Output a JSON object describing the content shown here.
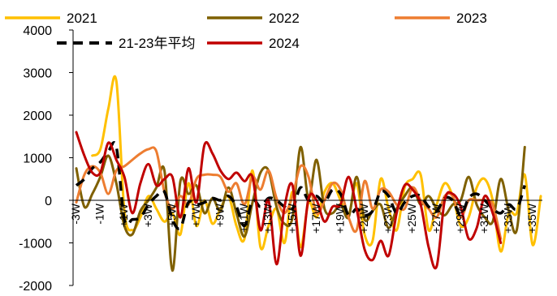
{
  "chart_data": {
    "type": "line",
    "title": "",
    "xlabel": "",
    "ylabel": "",
    "ylim": [
      -2000,
      4000
    ],
    "yticks": [
      "4000",
      "3000",
      "2000",
      "1000",
      "0",
      "-1000",
      "-2000"
    ],
    "x_tick_labels": [
      "-3W",
      "-1W",
      "+1W",
      "+3W",
      "+5W",
      "+7W",
      "+9W",
      "+11W",
      "+13W",
      "+15W",
      "+17W",
      "+19W",
      "+21W",
      "+23W",
      "+25W",
      "+27W",
      "+29W",
      "+31W",
      "+33W",
      "+35W"
    ],
    "grid": false,
    "legend_position": "top",
    "series": [
      {
        "name": "2021",
        "color": "#FFC000",
        "dashed": false,
        "values": [
          null,
          null,
          1050,
          1200,
          2150,
          2800,
          -250,
          -700,
          -400,
          100,
          -200,
          -500,
          -300,
          -800,
          400,
          -600,
          0,
          -550,
          -200,
          100,
          -600,
          -900,
          700,
          -1100,
          -600,
          -200,
          -1000,
          200,
          -1100,
          -50,
          -400,
          200,
          400,
          0,
          -350,
          400,
          -800,
          -950,
          500,
          -200,
          -700,
          300,
          500,
          600,
          -700,
          -100,
          400,
          100,
          -600,
          -400,
          300,
          500,
          0,
          -1200,
          -300,
          -300,
          600,
          -1050,
          100
        ]
      },
      {
        "name": "2022",
        "color": "#7F6000",
        "dashed": false,
        "values": [
          750,
          -150,
          150,
          550,
          1050,
          400,
          -600,
          -800,
          -250,
          0,
          300,
          700,
          -1650,
          450,
          150,
          350,
          -300,
          50,
          -250,
          300,
          -300,
          -850,
          -50,
          650,
          700,
          -150,
          -550,
          -400,
          1250,
          50,
          950,
          -200,
          -300,
          -100,
          -400,
          550,
          -450,
          -250,
          -100,
          -650,
          -200,
          100,
          300,
          -100,
          100,
          -200,
          -350,
          -100,
          0,
          550,
          -100,
          -400,
          -500,
          500,
          -250,
          -700,
          1250,
          null,
          null
        ]
      },
      {
        "name": "2023",
        "color": "#ED7D31",
        "dashed": false,
        "values": [
          -50,
          600,
          800,
          650,
          150,
          700,
          800,
          950,
          1100,
          1200,
          1150,
          200,
          -200,
          100,
          -100,
          500,
          600,
          600,
          550,
          200,
          400,
          -100,
          550,
          250,
          700,
          50,
          -300,
          100,
          800,
          550,
          -300,
          0,
          400,
          250,
          -400,
          -700,
          450,
          -200,
          250,
          200,
          -100,
          -200,
          300,
          0,
          -200,
          -400,
          100,
          100,
          -400,
          0,
          0,
          0,
          -100,
          -900,
          null,
          null,
          null,
          null,
          null
        ]
      },
      {
        "name": "21-23年平均",
        "color": "#000000",
        "dashed": true,
        "values": [
          350,
          500,
          750,
          900,
          1150,
          1250,
          -450,
          -450,
          -400,
          -100,
          100,
          200,
          -450,
          -650,
          -50,
          -100,
          -50,
          50,
          0,
          100,
          -150,
          -600,
          0,
          -150,
          50,
          0,
          -150,
          -200,
          300,
          0,
          100,
          -50,
          250,
          150,
          -350,
          -200,
          -350,
          -250,
          200,
          100,
          -300,
          -50,
          100,
          100,
          -150,
          -250,
          50,
          0,
          -350,
          50,
          150,
          0,
          -200,
          -300,
          -100,
          -200,
          350,
          null,
          null
        ]
      },
      {
        "name": "2024",
        "color": "#C00000",
        "dashed": false,
        "values": [
          1600,
          1050,
          650,
          650,
          1350,
          950,
          550,
          -300,
          400,
          850,
          350,
          500,
          550,
          -400,
          750,
          -50,
          1300,
          1100,
          700,
          500,
          650,
          450,
          550,
          -700,
          0,
          -1500,
          -150,
          350,
          -1300,
          50,
          0,
          -500,
          -150,
          -100,
          550,
          -200,
          -1150,
          -1400,
          -950,
          -1300,
          -300,
          350,
          250,
          -100,
          -1100,
          -1550,
          0,
          150,
          -150,
          -900,
          -650,
          100,
          -300,
          -1000,
          null,
          null,
          null,
          null,
          null
        ]
      }
    ]
  }
}
